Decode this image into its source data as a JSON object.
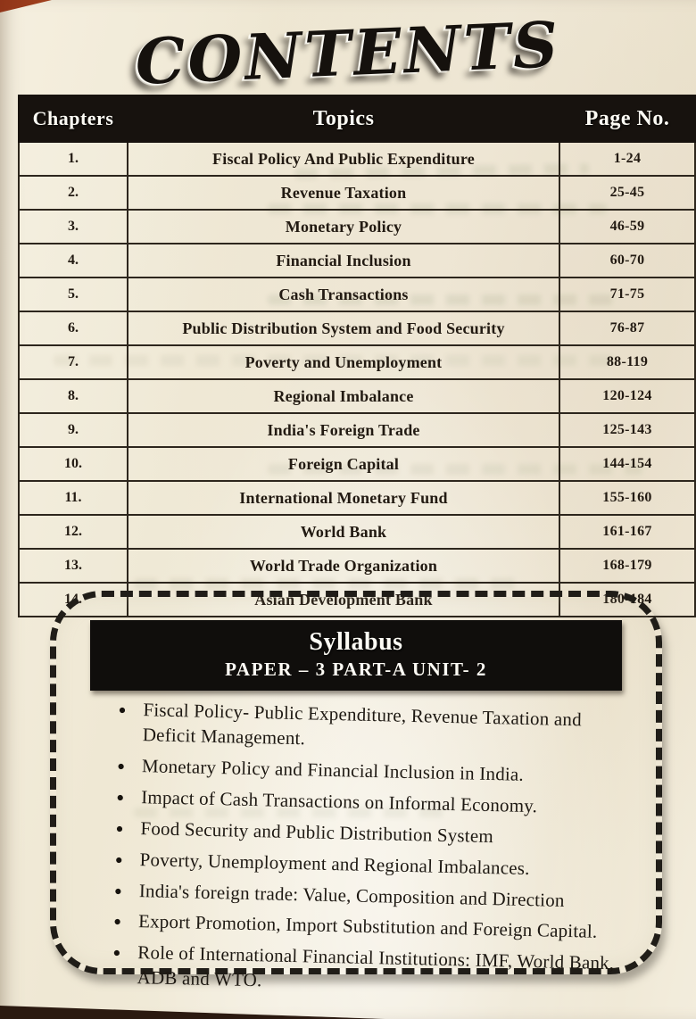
{
  "page_title": "CONTENTS",
  "table": {
    "headers": {
      "chapters": "Chapters",
      "topics": "Topics",
      "page_no": "Page No."
    },
    "rows": [
      {
        "chapter": "1.",
        "topic": "Fiscal Policy And Public Expenditure",
        "pages": "1-24"
      },
      {
        "chapter": "2.",
        "topic": "Revenue Taxation",
        "pages": "25-45"
      },
      {
        "chapter": "3.",
        "topic": "Monetary Policy",
        "pages": "46-59"
      },
      {
        "chapter": "4.",
        "topic": "Financial Inclusion",
        "pages": "60-70"
      },
      {
        "chapter": "5.",
        "topic": "Cash Transactions",
        "pages": "71-75"
      },
      {
        "chapter": "6.",
        "topic": "Public Distribution System and Food Security",
        "pages": "76-87"
      },
      {
        "chapter": "7.",
        "topic": "Poverty and Unemployment",
        "pages": "88-119"
      },
      {
        "chapter": "8.",
        "topic": "Regional Imbalance",
        "pages": "120-124"
      },
      {
        "chapter": "9.",
        "topic": "India's Foreign Trade",
        "pages": "125-143"
      },
      {
        "chapter": "10.",
        "topic": "Foreign Capital",
        "pages": "144-154"
      },
      {
        "chapter": "11.",
        "topic": "International Monetary Fund",
        "pages": "155-160"
      },
      {
        "chapter": "12.",
        "topic": "World Bank",
        "pages": "161-167"
      },
      {
        "chapter": "13.",
        "topic": "World Trade Organization",
        "pages": "168-179"
      },
      {
        "chapter": "14.",
        "topic": "Asian Development Bank",
        "pages": "180-184"
      }
    ]
  },
  "syllabus": {
    "title": "Syllabus",
    "subtitle": "PAPER – 3 PART-A  UNIT- 2",
    "items": [
      "Fiscal Policy- Public Expenditure, Revenue Taxation and Deficit Management.",
      "Monetary Policy and Financial Inclusion in India.",
      "Impact of Cash Transactions on Informal Economy.",
      "Food Security and Public Distribution System",
      "Poverty, Unemployment and Regional Imbalances.",
      "India's foreign trade: Value, Composition and Direction",
      "Export Promotion, Import Substitution and Foreign Capital.",
      "Role of International Financial Institutions: IMF, World Bank, ADB and WTO."
    ]
  },
  "colors": {
    "paper": "#f2ecdb",
    "ink": "#17120e",
    "desk_edge_red": "#a7451f",
    "desk_dark": "#2b1a10"
  }
}
